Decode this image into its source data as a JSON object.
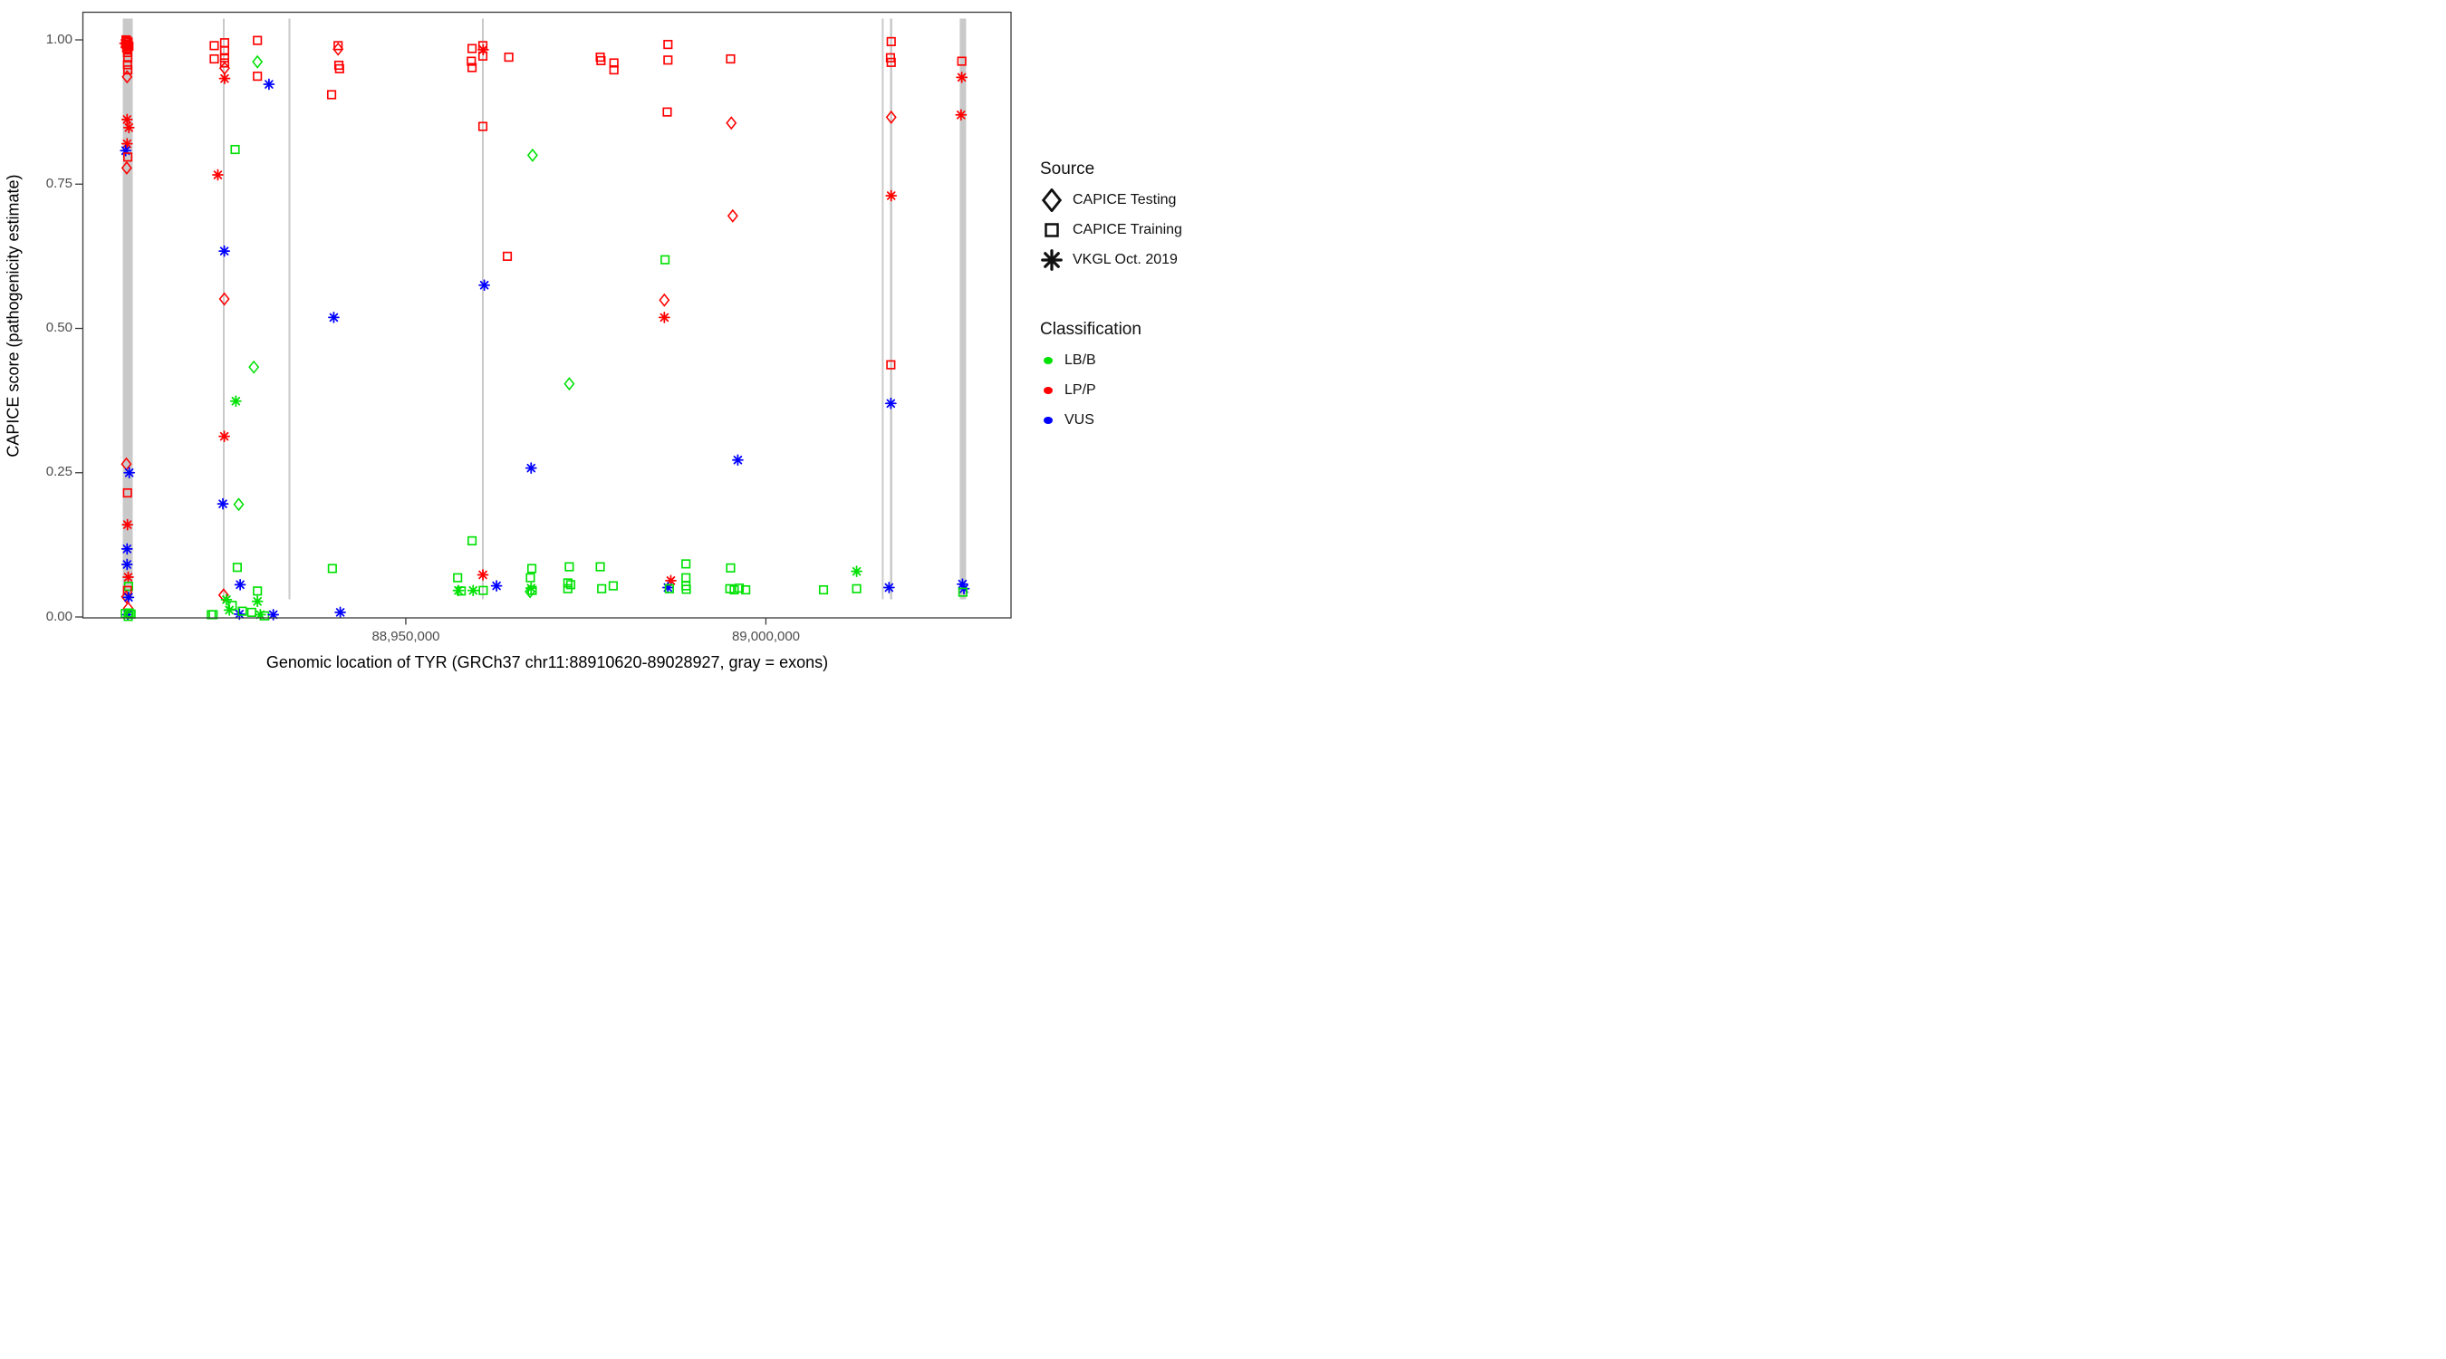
{
  "figure": {
    "x_title": "Genomic location of TYR (GRCh37 chr11:88910620-89028927, gray = exons)",
    "y_title": "CAPICE score (pathogenicity estimate)"
  },
  "legend": {
    "source": {
      "header": "Source",
      "items": [
        {
          "label": "CAPICE Testing",
          "glyph": "diamond-icon"
        },
        {
          "label": "CAPICE Training",
          "glyph": "square-icon"
        },
        {
          "label": "VKGL Oct. 2019",
          "glyph": "asterisk-icon"
        }
      ]
    },
    "classification": {
      "header": "Classification",
      "items": [
        {
          "label": "LB/B",
          "color": "#00e104"
        },
        {
          "label": "LP/P",
          "color": "#ff0000"
        },
        {
          "label": "VUS",
          "color": "#0000ff"
        }
      ]
    }
  },
  "chart_data": {
    "type": "scatter",
    "title": "",
    "xlabel": "Genomic location of TYR (GRCh37 chr11:88910620-89028927, gray = exons)",
    "ylabel": "CAPICE score (pathogenicity estimate)",
    "x_axis": {
      "range_bp": [
        88905100,
        89034100
      ],
      "ticks": [
        {
          "bp": 88950000,
          "label": "88,950,000"
        },
        {
          "bp": 89000000,
          "label": "89,000,000"
        }
      ]
    },
    "y_axis": {
      "range": [
        0.0,
        1.0
      ],
      "ticks": [
        {
          "value": 1.0,
          "label": "1.00"
        },
        {
          "value": 0.75,
          "label": "0.75"
        },
        {
          "value": 0.5,
          "label": "0.50"
        },
        {
          "value": 0.25,
          "label": "0.25"
        },
        {
          "value": 0.0,
          "label": "0.00"
        }
      ]
    },
    "grid": false,
    "legend_position": "right",
    "colors": {
      "LB/B": "#00e104",
      "LP/P": "#ff0000",
      "VUS": "#0000ff",
      "exon": "#c9c9c9",
      "axis_text": "#4d4d4d",
      "axis_line": "#3a3a3a"
    },
    "marker_by_source": {
      "testing": "diamond",
      "training": "square",
      "vkgl": "asterisk"
    },
    "exon_bars_bp": [
      {
        "start": 88910700,
        "end": 88912080
      },
      {
        "start": 88924600,
        "end": 88924850
      },
      {
        "start": 88933720,
        "end": 88933970
      },
      {
        "start": 88960570,
        "end": 88960820
      },
      {
        "start": 89016100,
        "end": 89016350
      },
      {
        "start": 89017230,
        "end": 89017550
      },
      {
        "start": 89026920,
        "end": 89027800
      }
    ],
    "points": [
      [
        88911150,
        1.0,
        "training",
        "LP/P"
      ],
      [
        88911300,
        0.998,
        "training",
        "LP/P"
      ],
      [
        88911450,
        0.996,
        "training",
        "LP/P"
      ],
      [
        88911100,
        0.993,
        "training",
        "LP/P"
      ],
      [
        88911350,
        0.991,
        "training",
        "LP/P"
      ],
      [
        88911550,
        0.989,
        "training",
        "LP/P"
      ],
      [
        88911250,
        0.986,
        "training",
        "LP/P"
      ],
      [
        88911400,
        0.984,
        "training",
        "LP/P"
      ],
      [
        88911000,
        0.994,
        "vkgl",
        "LP/P"
      ],
      [
        88911200,
        0.987,
        "vkgl",
        "LP/P"
      ],
      [
        88911350,
        0.978,
        "training",
        "LP/P"
      ],
      [
        88911400,
        0.969,
        "training",
        "LP/P"
      ],
      [
        88911350,
        0.957,
        "training",
        "LP/P"
      ],
      [
        88911400,
        0.948,
        "training",
        "LP/P"
      ],
      [
        88911300,
        0.936,
        "testing",
        "LP/P"
      ],
      [
        88911300,
        0.862,
        "vkgl",
        "LP/P"
      ],
      [
        88911550,
        0.848,
        "vkgl",
        "LP/P"
      ],
      [
        88911300,
        0.82,
        "vkgl",
        "LP/P"
      ],
      [
        88911100,
        0.808,
        "vkgl",
        "VUS"
      ],
      [
        88911400,
        0.797,
        "training",
        "LP/P"
      ],
      [
        88911250,
        0.778,
        "testing",
        "LP/P"
      ],
      [
        88911200,
        0.265,
        "testing",
        "LP/P"
      ],
      [
        88911600,
        0.25,
        "vkgl",
        "VUS"
      ],
      [
        88911350,
        0.215,
        "training",
        "LP/P"
      ],
      [
        88911350,
        0.16,
        "vkgl",
        "LP/P"
      ],
      [
        88911300,
        0.118,
        "vkgl",
        "VUS"
      ],
      [
        88911300,
        0.091,
        "vkgl",
        "VUS"
      ],
      [
        88911450,
        0.069,
        "vkgl",
        "LP/P"
      ],
      [
        88911500,
        0.053,
        "training",
        "LB/B"
      ],
      [
        88911350,
        0.046,
        "training",
        "LP/P"
      ],
      [
        88911200,
        0.035,
        "testing",
        "LP/P"
      ],
      [
        88911500,
        0.034,
        "vkgl",
        "VUS"
      ],
      [
        88911450,
        0.015,
        "testing",
        "LP/P"
      ],
      [
        88911050,
        0.006,
        "training",
        "LB/B"
      ],
      [
        88911400,
        0.004,
        "vkgl",
        "VUS"
      ],
      [
        88911600,
        0.007,
        "training",
        "LB/B"
      ],
      [
        88911850,
        0.005,
        "training",
        "LB/B"
      ],
      [
        88911450,
        0.001,
        "training",
        "LB/B"
      ],
      [
        88923400,
        0.99,
        "training",
        "LP/P"
      ],
      [
        88923400,
        0.967,
        "training",
        "LP/P"
      ],
      [
        88924840,
        0.995,
        "training",
        "LP/P"
      ],
      [
        88924840,
        0.981,
        "training",
        "LP/P"
      ],
      [
        88924840,
        0.969,
        "training",
        "LP/P"
      ],
      [
        88924840,
        0.96,
        "training",
        "LP/P"
      ],
      [
        88924840,
        0.951,
        "testing",
        "LP/P"
      ],
      [
        88924840,
        0.933,
        "vkgl",
        "LP/P"
      ],
      [
        88926300,
        0.81,
        "training",
        "LB/B"
      ],
      [
        88923900,
        0.766,
        "vkgl",
        "LP/P"
      ],
      [
        88924800,
        0.634,
        "vkgl",
        "VUS"
      ],
      [
        88924800,
        0.551,
        "testing",
        "LP/P"
      ],
      [
        88928900,
        0.433,
        "testing",
        "LB/B"
      ],
      [
        88926400,
        0.374,
        "vkgl",
        "LB/B"
      ],
      [
        88924800,
        0.313,
        "vkgl",
        "LP/P"
      ],
      [
        88924600,
        0.196,
        "vkgl",
        "VUS"
      ],
      [
        88926800,
        0.195,
        "testing",
        "LB/B"
      ],
      [
        88924700,
        0.038,
        "testing",
        "LP/P"
      ],
      [
        88926600,
        0.086,
        "training",
        "LB/B"
      ],
      [
        88927000,
        0.056,
        "vkgl",
        "VUS"
      ],
      [
        88925100,
        0.03,
        "vkgl",
        "LB/B"
      ],
      [
        88925500,
        0.012,
        "vkgl",
        "LB/B"
      ],
      [
        88925900,
        0.02,
        "training",
        "LB/B"
      ],
      [
        88926900,
        0.005,
        "vkgl",
        "VUS"
      ],
      [
        88927300,
        0.01,
        "training",
        "LB/B"
      ],
      [
        88923000,
        0.004,
        "training",
        "LB/B"
      ],
      [
        88923250,
        0.004,
        "training",
        "LB/B"
      ],
      [
        88929400,
        0.045,
        "training",
        "LB/B"
      ],
      [
        88929400,
        0.027,
        "vkgl",
        "LB/B"
      ],
      [
        88928600,
        0.008,
        "training",
        "LB/B"
      ],
      [
        88929800,
        0.004,
        "vkgl",
        "LB/B"
      ],
      [
        88930400,
        0.002,
        "training",
        "LB/B"
      ],
      [
        88931600,
        0.004,
        "vkgl",
        "VUS"
      ],
      [
        88929400,
        0.999,
        "training",
        "LP/P"
      ],
      [
        88929400,
        0.962,
        "testing",
        "LB/B"
      ],
      [
        88929400,
        0.937,
        "training",
        "LP/P"
      ],
      [
        88931000,
        0.923,
        "vkgl",
        "VUS"
      ],
      [
        88940600,
        0.99,
        "training",
        "LP/P"
      ],
      [
        88940600,
        0.984,
        "testing",
        "LP/P"
      ],
      [
        88940700,
        0.956,
        "training",
        "LP/P"
      ],
      [
        88940800,
        0.95,
        "training",
        "LP/P"
      ],
      [
        88939700,
        0.905,
        "training",
        "LP/P"
      ],
      [
        88940000,
        0.519,
        "vkgl",
        "VUS"
      ],
      [
        88939800,
        0.084,
        "training",
        "LB/B"
      ],
      [
        88940900,
        0.008,
        "vkgl",
        "VUS"
      ],
      [
        88957200,
        0.068,
        "training",
        "LB/B"
      ],
      [
        88957300,
        0.046,
        "vkgl",
        "LB/B"
      ],
      [
        88957700,
        0.045,
        "training",
        "LB/B"
      ],
      [
        88959200,
        0.985,
        "training",
        "LP/P"
      ],
      [
        88959100,
        0.963,
        "training",
        "LP/P"
      ],
      [
        88959200,
        0.952,
        "training",
        "LP/P"
      ],
      [
        88959350,
        0.046,
        "vkgl",
        "LB/B"
      ],
      [
        88959200,
        0.132,
        "training",
        "LB/B"
      ],
      [
        88960700,
        0.99,
        "training",
        "LP/P"
      ],
      [
        88960700,
        0.972,
        "training",
        "LP/P"
      ],
      [
        88960750,
        0.983,
        "vkgl",
        "LP/P"
      ],
      [
        88960700,
        0.85,
        "training",
        "LP/P"
      ],
      [
        88960900,
        0.575,
        "vkgl",
        "VUS"
      ],
      [
        88960700,
        0.073,
        "vkgl",
        "LP/P"
      ],
      [
        88962600,
        0.054,
        "vkgl",
        "VUS"
      ],
      [
        88960750,
        0.046,
        "training",
        "LB/B"
      ],
      [
        88964300,
        0.97,
        "training",
        "LP/P"
      ],
      [
        88964100,
        0.625,
        "training",
        "LP/P"
      ],
      [
        88967600,
        0.8,
        "testing",
        "LB/B"
      ],
      [
        88967400,
        0.258,
        "vkgl",
        "VUS"
      ],
      [
        88967500,
        0.084,
        "training",
        "LB/B"
      ],
      [
        88967300,
        0.068,
        "training",
        "LB/B"
      ],
      [
        88967400,
        0.05,
        "vkgl",
        "LB/B"
      ],
      [
        88967550,
        0.046,
        "training",
        "LB/B"
      ],
      [
        88967250,
        0.044,
        "testing",
        "LB/B"
      ],
      [
        88972700,
        0.404,
        "testing",
        "LB/B"
      ],
      [
        88972700,
        0.087,
        "training",
        "LB/B"
      ],
      [
        88972500,
        0.059,
        "training",
        "LB/B"
      ],
      [
        88972900,
        0.056,
        "training",
        "LB/B"
      ],
      [
        88972500,
        0.049,
        "training",
        "LB/B"
      ],
      [
        88977000,
        0.97,
        "training",
        "LP/P"
      ],
      [
        88977100,
        0.964,
        "training",
        "LP/P"
      ],
      [
        88978900,
        0.96,
        "training",
        "LP/P"
      ],
      [
        88978900,
        0.948,
        "training",
        "LP/P"
      ],
      [
        88977000,
        0.087,
        "training",
        "LB/B"
      ],
      [
        88977200,
        0.049,
        "training",
        "LB/B"
      ],
      [
        88978800,
        0.054,
        "training",
        "LB/B"
      ],
      [
        88986400,
        0.992,
        "training",
        "LP/P"
      ],
      [
        88986400,
        0.965,
        "training",
        "LP/P"
      ],
      [
        88986300,
        0.875,
        "training",
        "LP/P"
      ],
      [
        88986000,
        0.619,
        "training",
        "LB/B"
      ],
      [
        88985900,
        0.549,
        "testing",
        "LP/P"
      ],
      [
        88985900,
        0.519,
        "vkgl",
        "LP/P"
      ],
      [
        88986800,
        0.063,
        "vkgl",
        "LP/P"
      ],
      [
        88986400,
        0.051,
        "vkgl",
        "VUS"
      ],
      [
        88986600,
        0.049,
        "training",
        "LB/B"
      ],
      [
        88988900,
        0.092,
        "training",
        "LB/B"
      ],
      [
        88988900,
        0.068,
        "training",
        "LB/B"
      ],
      [
        88988900,
        0.054,
        "training",
        "LB/B"
      ],
      [
        88988950,
        0.048,
        "training",
        "LB/B"
      ],
      [
        88995100,
        0.967,
        "training",
        "LP/P"
      ],
      [
        88995200,
        0.856,
        "testing",
        "LP/P"
      ],
      [
        88995400,
        0.695,
        "testing",
        "LP/P"
      ],
      [
        88996100,
        0.272,
        "vkgl",
        "VUS"
      ],
      [
        88995100,
        0.085,
        "training",
        "LB/B"
      ],
      [
        88995000,
        0.049,
        "training",
        "LB/B"
      ],
      [
        88995600,
        0.047,
        "training",
        "LB/B"
      ],
      [
        88996300,
        0.05,
        "training",
        "LB/B"
      ],
      [
        88997200,
        0.047,
        "training",
        "LB/B"
      ],
      [
        89008000,
        0.047,
        "training",
        "LB/B"
      ],
      [
        89012600,
        0.079,
        "vkgl",
        "LB/B"
      ],
      [
        89012600,
        0.049,
        "training",
        "LB/B"
      ],
      [
        89017400,
        0.997,
        "training",
        "LP/P"
      ],
      [
        89017300,
        0.969,
        "training",
        "LP/P"
      ],
      [
        89017400,
        0.961,
        "training",
        "LP/P"
      ],
      [
        89017400,
        0.866,
        "testing",
        "LP/P"
      ],
      [
        89017400,
        0.73,
        "vkgl",
        "LP/P"
      ],
      [
        89017350,
        0.437,
        "training",
        "LP/P"
      ],
      [
        89017350,
        0.37,
        "vkgl",
        "VUS"
      ],
      [
        89017100,
        0.051,
        "vkgl",
        "VUS"
      ],
      [
        89027200,
        0.963,
        "training",
        "LP/P"
      ],
      [
        89027200,
        0.935,
        "vkgl",
        "LP/P"
      ],
      [
        89027100,
        0.87,
        "vkgl",
        "LP/P"
      ],
      [
        89027300,
        0.057,
        "vkgl",
        "VUS"
      ],
      [
        89027500,
        0.049,
        "vkgl",
        "VUS"
      ],
      [
        89027350,
        0.043,
        "training",
        "LB/B"
      ]
    ]
  }
}
